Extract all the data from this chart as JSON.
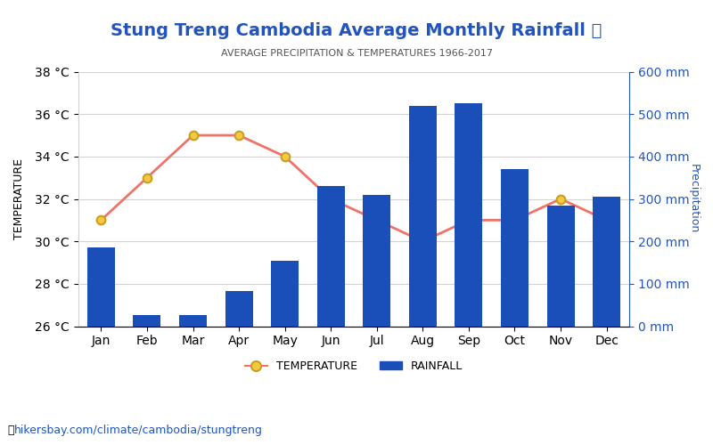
{
  "months": [
    "Jan",
    "Feb",
    "Mar",
    "Apr",
    "May",
    "Jun",
    "Jul",
    "Aug",
    "Sep",
    "Oct",
    "Nov",
    "Dec"
  ],
  "rainfall_mm": [
    185,
    27,
    27,
    82,
    155,
    330,
    310,
    520,
    525,
    370,
    285,
    305
  ],
  "temperature_c": [
    31.0,
    33.0,
    35.0,
    35.0,
    34.0,
    32.0,
    31.0,
    30.0,
    31.0,
    31.0,
    32.0,
    31.0
  ],
  "title": "Stung Treng Cambodia Average Monthly Rainfall 🌧",
  "subtitle": "AVERAGE PRECIPITATION & TEMPERATURES 1966-2017",
  "ylabel_left": "TEMPERATURE",
  "ylabel_right": "Precipitation",
  "bar_color": "#1a4fba",
  "line_color": "#f0736a",
  "marker_color": "#f5c842",
  "marker_edge_color": "#c8a020",
  "title_color": "#2255bb",
  "subtitle_color": "#555555",
  "axis_color": "#2255bb",
  "temp_ylim": [
    26,
    38
  ],
  "temp_yticks": [
    26,
    28,
    30,
    32,
    34,
    36,
    38
  ],
  "precip_ylim": [
    0,
    600
  ],
  "precip_yticks": [
    0,
    100,
    200,
    300,
    400,
    500,
    600
  ],
  "temp_ytick_labels": [
    "26 °C",
    "28 °C",
    "30 °C",
    "32 °C",
    "34 °C",
    "36 °C",
    "38 °C"
  ],
  "precip_ytick_labels": [
    "0 mm",
    "100 mm",
    "200 mm",
    "300 mm",
    "400 mm",
    "500 mm",
    "600 mm"
  ],
  "footer_text": "hikersbay.com/climate/cambodia/stungtreng",
  "legend_temp_label": "TEMPERATURE",
  "legend_rain_label": "RAINFALL"
}
